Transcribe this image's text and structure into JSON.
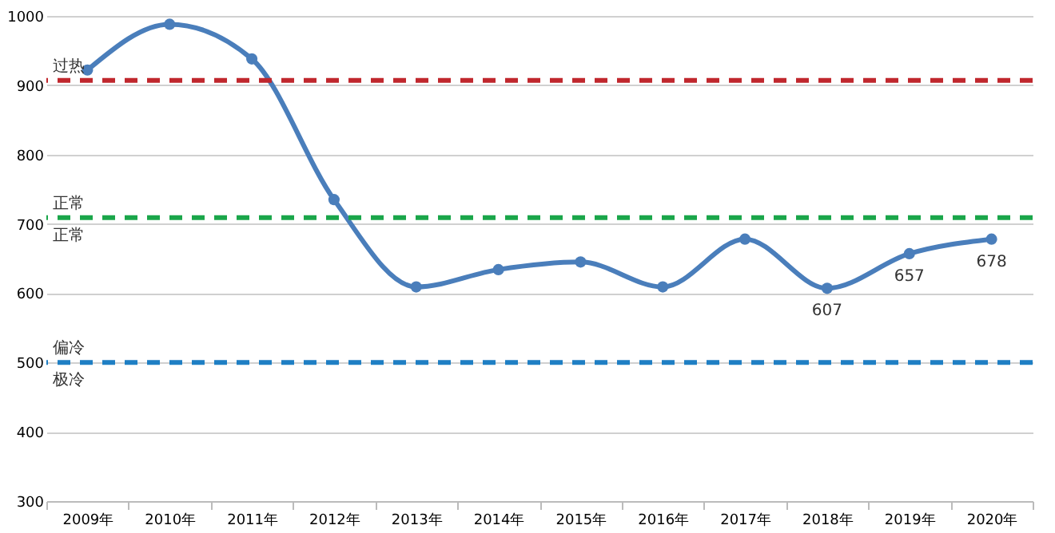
{
  "chart_data": {
    "type": "line",
    "categories": [
      "2009年",
      "2010年",
      "2011年",
      "2012年",
      "2013年",
      "2014年",
      "2015年",
      "2016年",
      "2017年",
      "2018年",
      "2019年",
      "2020年"
    ],
    "series": [
      {
        "color": "#4a7ebb",
        "values": [
          922,
          988,
          938,
          735,
          609,
          634,
          645,
          609,
          678,
          607,
          657,
          678
        ],
        "value_labels": [
          null,
          null,
          null,
          null,
          null,
          null,
          null,
          null,
          null,
          "607",
          "657",
          "678"
        ]
      }
    ],
    "ylim": [
      300,
      1000
    ],
    "yticks": [
      300,
      400,
      500,
      600,
      700,
      800,
      900,
      1000
    ],
    "grid": "y",
    "marker": "circle",
    "line_style": "solid",
    "ref_lines": [
      {
        "axis": "y",
        "value": 907,
        "label": "过热",
        "color": "#c0272d",
        "line_style": "dashed"
      },
      {
        "axis": "y",
        "value": 709,
        "label": "正常",
        "color": "#1aa64a",
        "line_style": "dashed"
      },
      {
        "axis": "y",
        "value": 500,
        "label": "偏冷",
        "color": "#1f7fc4",
        "line_style": "dashed"
      }
    ],
    "annotations": [
      {
        "text": "正常",
        "y": 709
      },
      {
        "text": "极冷",
        "y": 500
      }
    ]
  }
}
